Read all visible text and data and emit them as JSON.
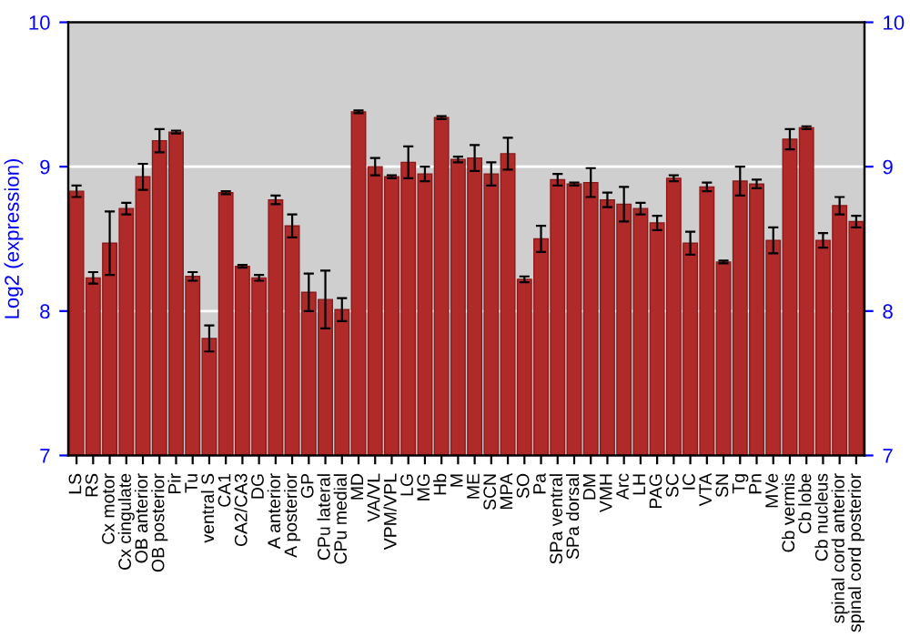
{
  "chart_data": {
    "type": "bar",
    "ylabel": "Log2 (expression)",
    "categories": [
      "LS",
      "RS",
      "Cx motor",
      "Cx cingulate",
      "OB anterior",
      "OB posterior",
      "Pir",
      "Tu",
      "ventral S",
      "CA1",
      "CA2/CA3",
      "DG",
      "A anterior",
      "A posterior",
      "GP",
      "CPu lateral",
      "CPu medial",
      "MD",
      "VA/VL",
      "VPM/VPL",
      "LG",
      "MG",
      "Hb",
      "M",
      "ME",
      "SCN",
      "MPA",
      "SO",
      "Pa",
      "SPa ventral",
      "SPa dorsal",
      "DM",
      "VMH",
      "Arc",
      "LH",
      "PAG",
      "SC",
      "IC",
      "VTA",
      "SN",
      "Tg",
      "Pn",
      "MVe",
      "Cb vermis",
      "Cb lobe",
      "Cb nucleus",
      "spinal cord anterior",
      "spinal cord posterior"
    ],
    "values": [
      8.83,
      8.23,
      8.47,
      8.71,
      8.93,
      9.18,
      9.24,
      8.24,
      7.81,
      8.82,
      8.31,
      8.23,
      8.77,
      8.59,
      8.13,
      8.08,
      8.01,
      9.38,
      9.0,
      8.93,
      9.03,
      8.95,
      9.34,
      9.05,
      9.06,
      8.95,
      9.09,
      8.22,
      8.5,
      8.91,
      8.88,
      8.89,
      8.77,
      8.74,
      8.71,
      8.61,
      8.92,
      8.47,
      8.86,
      8.34,
      8.9,
      8.88,
      8.49,
      9.19,
      9.27,
      8.49,
      8.73,
      8.62
    ],
    "errors": [
      0.04,
      0.04,
      0.22,
      0.04,
      0.09,
      0.08,
      0.01,
      0.03,
      0.09,
      0.01,
      0.01,
      0.02,
      0.03,
      0.08,
      0.13,
      0.2,
      0.08,
      0.01,
      0.06,
      0.01,
      0.11,
      0.05,
      0.01,
      0.02,
      0.09,
      0.08,
      0.11,
      0.02,
      0.09,
      0.04,
      0.01,
      0.1,
      0.05,
      0.12,
      0.04,
      0.05,
      0.02,
      0.08,
      0.03,
      0.01,
      0.1,
      0.03,
      0.09,
      0.07,
      0.01,
      0.05,
      0.06,
      0.04
    ],
    "color": "#b02a2a",
    "ylim": [
      7,
      10
    ],
    "yticks": [
      7,
      8,
      9,
      10
    ],
    "y2lim": [
      7,
      10
    ],
    "y2ticks": [
      7,
      8,
      9,
      10
    ],
    "grid": "y"
  }
}
